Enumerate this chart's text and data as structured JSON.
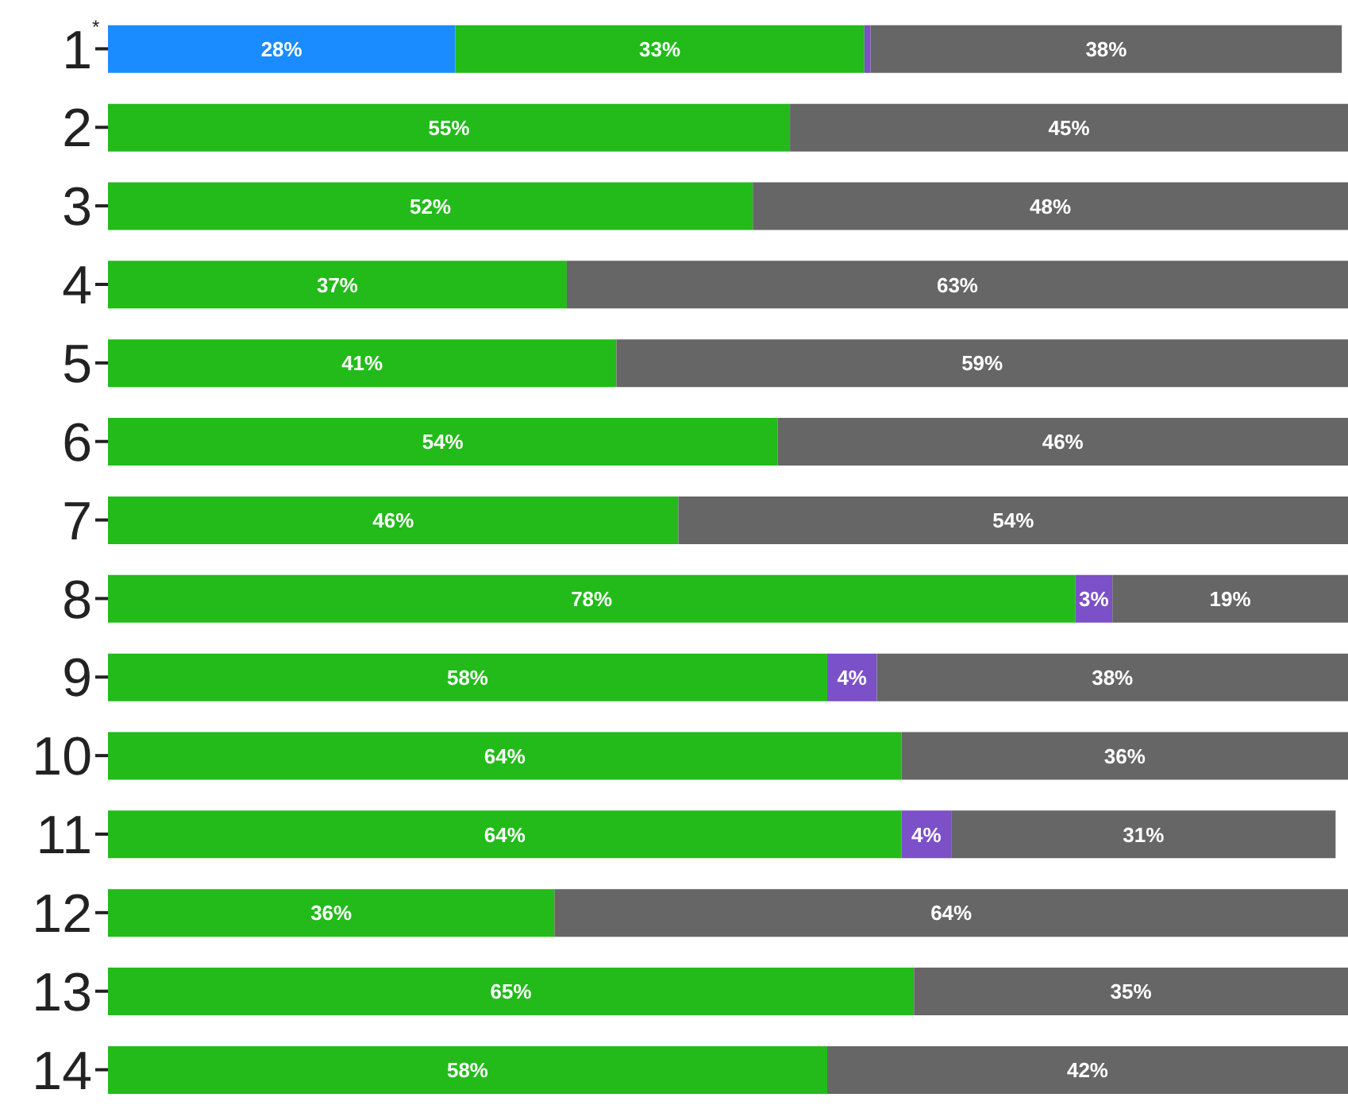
{
  "chart_data": {
    "type": "bar",
    "orientation": "horizontal",
    "stacked": true,
    "categories": [
      "1",
      "2",
      "3",
      "4",
      "5",
      "6",
      "7",
      "8",
      "9",
      "10",
      "11",
      "12",
      "13",
      "14"
    ],
    "series": [
      {
        "color": "#1a8cff",
        "values": [
          28,
          null,
          null,
          null,
          null,
          null,
          null,
          null,
          null,
          null,
          null,
          null,
          null,
          null
        ],
        "value_labels": [
          "28%",
          null,
          null,
          null,
          null,
          null,
          null,
          null,
          null,
          null,
          null,
          null,
          null,
          null
        ]
      },
      {
        "color": "#22bb1a",
        "values": [
          33,
          55,
          52,
          37,
          41,
          54,
          46,
          78,
          58,
          64,
          64,
          36,
          65,
          58
        ],
        "value_labels": [
          "33%",
          "55%",
          "52%",
          "37%",
          "41%",
          "54%",
          "46%",
          "78%",
          "58%",
          "64%",
          "64%",
          "36%",
          "65%",
          "58%"
        ]
      },
      {
        "color": "#7b50c8",
        "values": [
          0.5,
          null,
          null,
          null,
          null,
          null,
          null,
          3,
          4,
          null,
          4,
          null,
          null,
          null
        ],
        "value_labels": [
          null,
          null,
          null,
          null,
          null,
          null,
          null,
          "3%",
          "4%",
          null,
          "4%",
          null,
          null,
          null
        ]
      },
      {
        "color": "#666666",
        "values": [
          38,
          45,
          48,
          63,
          59,
          46,
          54,
          19,
          38,
          36,
          31,
          64,
          35,
          42
        ],
        "value_labels": [
          "38%",
          "45%",
          "48%",
          "63%",
          "59%",
          "46%",
          "54%",
          "19%",
          "38%",
          "36%",
          "31%",
          "64%",
          "35%",
          "42%"
        ]
      }
    ],
    "annotations": [
      "*"
    ]
  }
}
